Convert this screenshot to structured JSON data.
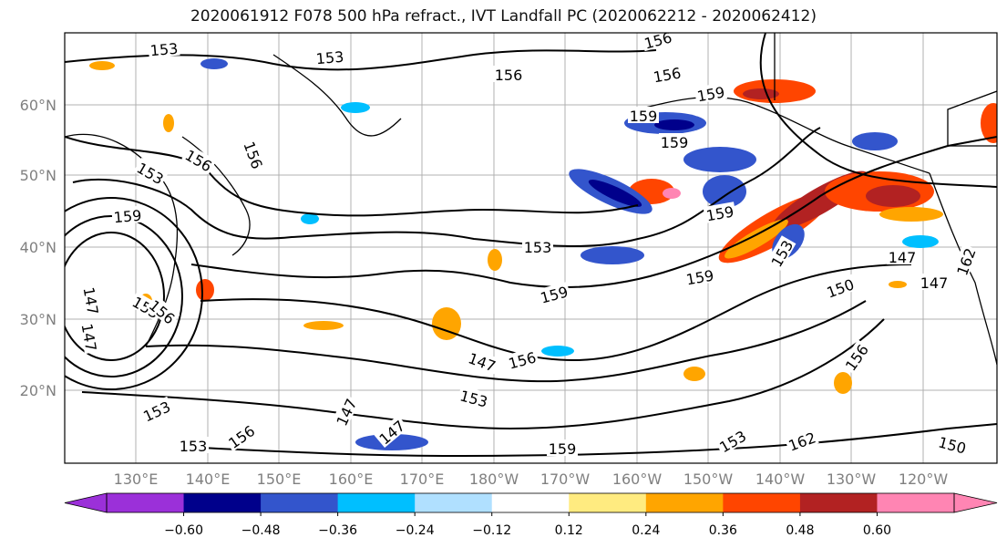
{
  "title": "2020061912 F078 500 hPa refract., IVT Landfall PC (2020062212 - 2020062412)",
  "lat_labels": [
    "60°N",
    "50°N",
    "40°N",
    "30°N",
    "20°N"
  ],
  "lon_labels": [
    "130°E",
    "140°E",
    "150°E",
    "160°E",
    "170°E",
    "180°W",
    "170°W",
    "160°W",
    "150°W",
    "140°W",
    "130°W",
    "120°W"
  ],
  "contour_labels": [
    "153",
    "153",
    "156",
    "156",
    "156",
    "159",
    "159",
    "159",
    "156",
    "153",
    "156",
    "159",
    "153",
    "159",
    "147",
    "162",
    "153",
    "159",
    "159",
    "153",
    "156",
    "150",
    "156",
    "147",
    "147",
    "153",
    "153",
    "156",
    "156",
    "147",
    "159",
    "162",
    "150",
    "147",
    "153",
    "147",
    "153",
    "147"
  ],
  "colorbar": {
    "colors": [
      "#9b30d9",
      "#00008b",
      "#3355cc",
      "#00bfff",
      "#b0e0ff",
      "#ffffff",
      "#ffeb80",
      "#ffa500",
      "#ff4500",
      "#b22222",
      "#ff85b3"
    ],
    "ticks": [
      "−0.60",
      "−0.48",
      "−0.36",
      "−0.24",
      "−0.12",
      "0.12",
      "0.24",
      "0.36",
      "0.48",
      "0.60"
    ]
  },
  "axis_color": "#808080"
}
